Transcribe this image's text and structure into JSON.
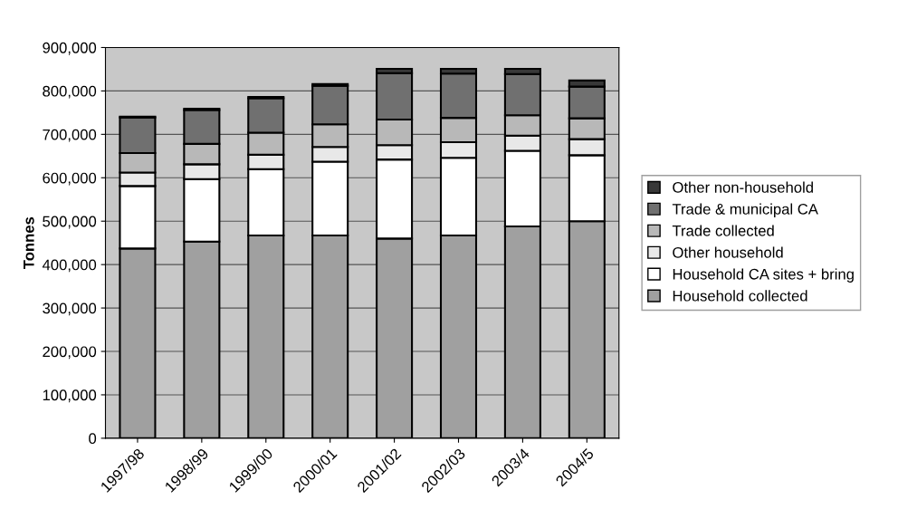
{
  "chart_data": {
    "type": "bar",
    "stacked": true,
    "ylabel": "Tonnes",
    "categories": [
      "1997/98",
      "1998/99",
      "1999/00",
      "2000/01",
      "2001/02",
      "2002/03",
      "2003/4",
      "2004/5"
    ],
    "series": [
      {
        "name": "Household collected",
        "color": "#a0a0a0",
        "values": [
          437000,
          453000,
          467000,
          467000,
          460000,
          467000,
          488000,
          500000
        ]
      },
      {
        "name": "Household CA sites + bring",
        "color": "#ffffff",
        "values": [
          144000,
          144000,
          153000,
          170000,
          182000,
          179000,
          174000,
          152000
        ]
      },
      {
        "name": "Other household",
        "color": "#e8e8e8",
        "values": [
          31000,
          34000,
          33000,
          34000,
          33000,
          36000,
          35000,
          37000
        ]
      },
      {
        "name": "Trade collected",
        "color": "#b8b8b8",
        "values": [
          45000,
          47000,
          51000,
          52000,
          59000,
          56000,
          47000,
          48000
        ]
      },
      {
        "name": "Trade & municipal CA",
        "color": "#707070",
        "values": [
          82000,
          78000,
          79000,
          89000,
          107000,
          102000,
          95000,
          73000
        ]
      },
      {
        "name": "Other non-household",
        "color": "#383838",
        "values": [
          2000,
          3000,
          3000,
          4000,
          10000,
          11000,
          12000,
          14000
        ]
      }
    ],
    "ylim": [
      0,
      900000
    ],
    "yticks": [
      0,
      {
        "value": 100000,
        "label": "100,000"
      },
      {
        "value": 200000,
        "label": "200,000"
      },
      {
        "value": 300000,
        "label": "300,000"
      },
      {
        "value": 400000,
        "label": "400,000"
      },
      {
        "value": 500000,
        "label": "500,000"
      },
      {
        "value": 600000,
        "label": "600,000"
      },
      {
        "value": 700000,
        "label": "700,000"
      },
      {
        "value": 800000,
        "label": "800,000"
      },
      {
        "value": 900000,
        "label": "900,000"
      }
    ],
    "grid": "y",
    "legend": "right"
  }
}
